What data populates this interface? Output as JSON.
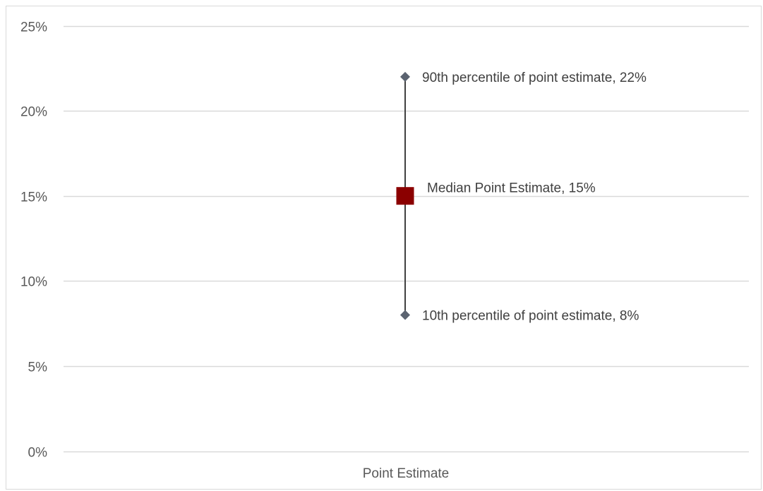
{
  "chart_data": {
    "type": "scatter",
    "categories": [
      "Point Estimate"
    ],
    "ylim": [
      0,
      25
    ],
    "y_ticks": [
      0,
      5,
      10,
      15,
      20,
      25
    ],
    "y_tick_labels": [
      "0%",
      "5%",
      "10%",
      "15%",
      "20%",
      "25%"
    ],
    "grid": true,
    "legend": "none",
    "range": {
      "low": 8,
      "high": 22
    },
    "points": [
      {
        "label": "90th percentile of point estimate, 22%",
        "value": 22,
        "marker": "diamond"
      },
      {
        "label": "Median Point Estimate, 15%",
        "value": 15,
        "marker": "square"
      },
      {
        "label": "10th percentile of point estimate, 8%",
        "value": 8,
        "marker": "diamond"
      }
    ],
    "colors": {
      "grid": "#d9d9d9",
      "range_line": "#404040",
      "diamond": "#5b6370",
      "median": "#8b0000"
    }
  }
}
